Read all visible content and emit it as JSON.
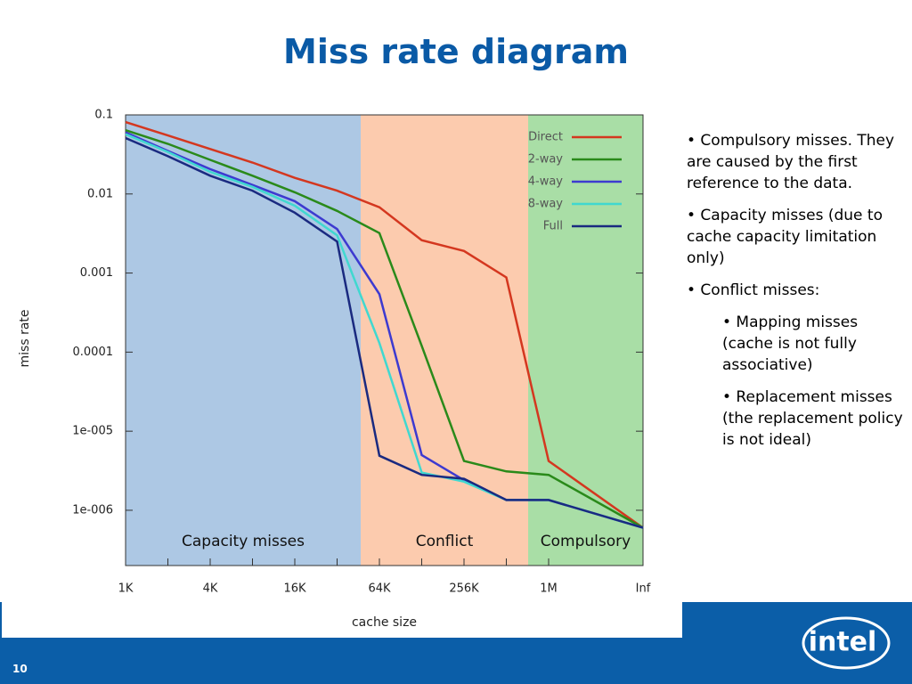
{
  "slide": {
    "title": "Miss rate diagram",
    "bullets": [
      {
        "text": "• Compulsory misses. They are caused by the first reference to the data.",
        "level": 1
      },
      {
        "text": "• Capacity misses (due to cache capacity limitation only)",
        "level": 1
      },
      {
        "text": "• Conflict misses:",
        "level": 1
      },
      {
        "text": "• Mapping misses (cache is not fully associative)",
        "level": 2
      },
      {
        "text": "• Replacement misses (the replacement policy is not ideal)",
        "level": 2
      }
    ],
    "page_number": "10",
    "logo": "intel"
  },
  "chart_data": {
    "type": "line",
    "xlabel": "cache size",
    "ylabel": "miss rate",
    "categories": [
      "1K",
      null,
      "4K",
      null,
      "16K",
      null,
      "64K",
      null,
      "256K",
      null,
      "1M",
      "Inf"
    ],
    "series": [
      {
        "name": "Direct",
        "color": "#d4371f",
        "values": [
          0.081,
          0.055,
          0.037,
          0.025,
          0.016,
          0.011,
          0.0068,
          0.0026,
          0.0019,
          0.00088,
          4.2e-06,
          6e-07
        ]
      },
      {
        "name": "2-way",
        "color": "#2a8a1a",
        "values": [
          0.064,
          0.043,
          0.027,
          0.017,
          0.0105,
          0.0061,
          0.0032,
          0.00012,
          4.2e-06,
          3.1e-06,
          2.8e-06,
          6e-07
        ]
      },
      {
        "name": "4-way",
        "color": "#3d3ad0",
        "values": [
          0.06,
          0.035,
          0.0206,
          0.013,
          0.0081,
          0.0036,
          0.00054,
          5e-06,
          2.4e-06,
          1.35e-06,
          1.35e-06,
          6e-07
        ]
      },
      {
        "name": "8-way",
        "color": "#40d8d0",
        "values": [
          0.057,
          0.034,
          0.019,
          0.0123,
          0.0071,
          0.003,
          0.00013,
          3e-06,
          2.3e-06,
          1.35e-06,
          1.35e-06,
          6e-07
        ]
      },
      {
        "name": "Full",
        "color": "#1a2a80",
        "values": [
          0.051,
          0.03,
          0.017,
          0.011,
          0.0058,
          0.0025,
          4.9e-06,
          2.8e-06,
          2.5e-06,
          1.35e-06,
          1.35e-06,
          6e-07
        ]
      }
    ],
    "regions": [
      {
        "label": "Capacity misses",
        "color": "#adc8e4"
      },
      {
        "label": "Conflict",
        "color": "#fccbae"
      },
      {
        "label": "Compulsory",
        "color": "#a9dea6"
      }
    ],
    "log_y": true,
    "ylim": [
      2e-07,
      0.1
    ],
    "yticks": [
      0.1,
      0.01,
      0.001,
      0.0001,
      {
        "value": 1e-05,
        "label": "1e-005"
      },
      {
        "value": 1e-06,
        "label": "1e-006"
      }
    ],
    "legend": "upper right"
  }
}
